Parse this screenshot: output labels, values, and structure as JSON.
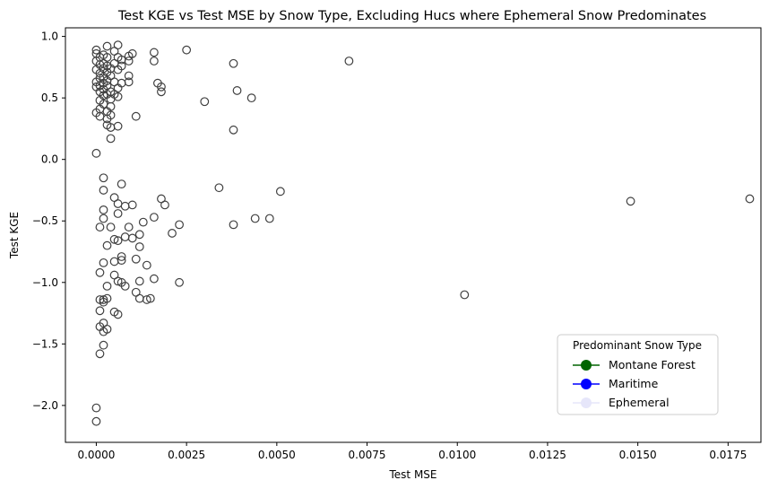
{
  "chart_data": {
    "type": "scatter",
    "title": "Test KGE vs Test MSE by Snow Type, Excluding Hucs where Ephemeral Snow Predominates",
    "xlabel": "Test MSE",
    "ylabel": "Test KGE",
    "xlim": [
      -0.000855,
      0.01841
    ],
    "ylim": [
      -2.3,
      1.07
    ],
    "xticks": [
      0.0,
      0.0025,
      0.005,
      0.0075,
      0.01,
      0.0125,
      0.015,
      0.0175
    ],
    "xtick_labels": [
      "0.0000",
      "0.0025",
      "0.0050",
      "0.0075",
      "0.0100",
      "0.0125",
      "0.0150",
      "0.0175"
    ],
    "yticks": [
      -2.0,
      -1.5,
      -1.0,
      -0.5,
      0.0,
      0.5,
      1.0
    ],
    "ytick_labels": [
      "−2.0",
      "−1.5",
      "−1.0",
      "−0.5",
      "0.0",
      "0.5",
      "1.0"
    ],
    "grid": false,
    "legend": {
      "title": "Predominant Snow Type",
      "placement": "lower-right",
      "entries": [
        {
          "label": "Montane Forest",
          "color": "#006400"
        },
        {
          "label": "Maritime",
          "color": "#0000ff"
        },
        {
          "label": "Ephemeral",
          "color": "#e6e6fa"
        }
      ]
    },
    "marker": {
      "edge_color": "#404040",
      "face": "none"
    },
    "points": [
      [
        0.0,
        0.89
      ],
      [
        0.0,
        0.86
      ],
      [
        0.0001,
        0.83
      ],
      [
        0.0,
        0.8
      ],
      [
        0.0001,
        0.77
      ],
      [
        0.0,
        0.73
      ],
      [
        0.0001,
        0.7
      ],
      [
        0.0001,
        0.66
      ],
      [
        0.0,
        0.63
      ],
      [
        0.0001,
        0.6
      ],
      [
        0.0,
        0.59
      ],
      [
        0.0001,
        0.55
      ],
      [
        0.0002,
        0.52
      ],
      [
        0.0001,
        0.48
      ],
      [
        0.0002,
        0.45
      ],
      [
        0.0001,
        0.41
      ],
      [
        0.0,
        0.38
      ],
      [
        0.0001,
        0.35
      ],
      [
        0.0002,
        0.85
      ],
      [
        0.0002,
        0.78
      ],
      [
        0.0002,
        0.74
      ],
      [
        0.0002,
        0.67
      ],
      [
        0.0002,
        0.62
      ],
      [
        0.0002,
        0.57
      ],
      [
        0.0003,
        0.83
      ],
      [
        0.0003,
        0.76
      ],
      [
        0.0003,
        0.71
      ],
      [
        0.0003,
        0.64
      ],
      [
        0.0003,
        0.6
      ],
      [
        0.0003,
        0.53
      ],
      [
        0.0003,
        0.39
      ],
      [
        0.0003,
        0.33
      ],
      [
        0.0003,
        0.28
      ],
      [
        0.0003,
        0.92
      ],
      [
        0.0004,
        0.74
      ],
      [
        0.0004,
        0.68
      ],
      [
        0.0004,
        0.55
      ],
      [
        0.0004,
        0.49
      ],
      [
        0.0004,
        0.43
      ],
      [
        0.0004,
        0.36
      ],
      [
        0.0004,
        0.26
      ],
      [
        0.0004,
        0.17
      ],
      [
        0.0005,
        0.88
      ],
      [
        0.0005,
        0.78
      ],
      [
        0.0005,
        0.63
      ],
      [
        0.0005,
        0.53
      ],
      [
        0.0006,
        0.93
      ],
      [
        0.0006,
        0.83
      ],
      [
        0.0006,
        0.73
      ],
      [
        0.0006,
        0.58
      ],
      [
        0.0006,
        0.51
      ],
      [
        0.0006,
        0.27
      ],
      [
        0.0007,
        0.81
      ],
      [
        0.0007,
        0.76
      ],
      [
        0.0007,
        0.62
      ],
      [
        0.0009,
        0.84
      ],
      [
        0.0009,
        0.8
      ],
      [
        0.0009,
        0.68
      ],
      [
        0.0009,
        0.63
      ],
      [
        0.001,
        0.86
      ],
      [
        0.0011,
        0.35
      ],
      [
        0.0016,
        0.87
      ],
      [
        0.0016,
        0.8
      ],
      [
        0.0017,
        0.62
      ],
      [
        0.0018,
        0.59
      ],
      [
        0.0018,
        0.55
      ],
      [
        0.0025,
        0.89
      ],
      [
        0.003,
        0.47
      ],
      [
        0.0038,
        0.78
      ],
      [
        0.0038,
        0.24
      ],
      [
        0.0039,
        0.56
      ],
      [
        0.0043,
        0.5
      ],
      [
        0.007,
        0.8
      ],
      [
        0.0,
        0.05
      ],
      [
        0.0002,
        -0.15
      ],
      [
        0.0002,
        -0.25
      ],
      [
        0.0005,
        -0.31
      ],
      [
        0.0007,
        -0.2
      ],
      [
        0.0006,
        -0.36
      ],
      [
        0.0008,
        -0.38
      ],
      [
        0.001,
        -0.37
      ],
      [
        0.0002,
        -0.41
      ],
      [
        0.0002,
        -0.48
      ],
      [
        0.0001,
        -0.55
      ],
      [
        0.0004,
        -0.55
      ],
      [
        0.0006,
        -0.44
      ],
      [
        0.0009,
        -0.55
      ],
      [
        0.0012,
        -0.61
      ],
      [
        0.0013,
        -0.51
      ],
      [
        0.0016,
        -0.47
      ],
      [
        0.0018,
        -0.32
      ],
      [
        0.0019,
        -0.37
      ],
      [
        0.0021,
        -0.6
      ],
      [
        0.0023,
        -0.53
      ],
      [
        0.0034,
        -0.23
      ],
      [
        0.0038,
        -0.53
      ],
      [
        0.0044,
        -0.48
      ],
      [
        0.0048,
        -0.48
      ],
      [
        0.0051,
        -0.26
      ],
      [
        0.0148,
        -0.34
      ],
      [
        0.0181,
        -0.32
      ],
      [
        0.0005,
        -0.65
      ],
      [
        0.0006,
        -0.66
      ],
      [
        0.0008,
        -0.63
      ],
      [
        0.001,
        -0.64
      ],
      [
        0.0003,
        -0.7
      ],
      [
        0.0012,
        -0.71
      ],
      [
        0.0007,
        -0.79
      ],
      [
        0.0007,
        -0.82
      ],
      [
        0.0005,
        -0.83
      ],
      [
        0.0002,
        -0.84
      ],
      [
        0.0011,
        -0.81
      ],
      [
        0.0014,
        -0.86
      ],
      [
        0.0001,
        -0.92
      ],
      [
        0.0005,
        -0.94
      ],
      [
        0.0006,
        -0.99
      ],
      [
        0.0007,
        -1.0
      ],
      [
        0.0008,
        -1.03
      ],
      [
        0.0003,
        -1.03
      ],
      [
        0.0012,
        -0.99
      ],
      [
        0.0016,
        -0.97
      ],
      [
        0.0023,
        -1.0
      ],
      [
        0.0011,
        -1.08
      ],
      [
        0.0012,
        -1.13
      ],
      [
        0.0014,
        -1.14
      ],
      [
        0.0015,
        -1.13
      ],
      [
        0.0001,
        -1.14
      ],
      [
        0.0002,
        -1.14
      ],
      [
        0.0003,
        -1.13
      ],
      [
        0.0002,
        -1.16
      ],
      [
        0.0005,
        -1.24
      ],
      [
        0.0006,
        -1.26
      ],
      [
        0.0001,
        -1.23
      ],
      [
        0.0002,
        -1.33
      ],
      [
        0.0001,
        -1.36
      ],
      [
        0.0003,
        -1.38
      ],
      [
        0.0002,
        -1.4
      ],
      [
        0.0002,
        -1.51
      ],
      [
        0.0001,
        -1.58
      ],
      [
        0.0,
        -2.02
      ],
      [
        0.0,
        -2.13
      ],
      [
        0.0102,
        -1.1
      ]
    ]
  }
}
